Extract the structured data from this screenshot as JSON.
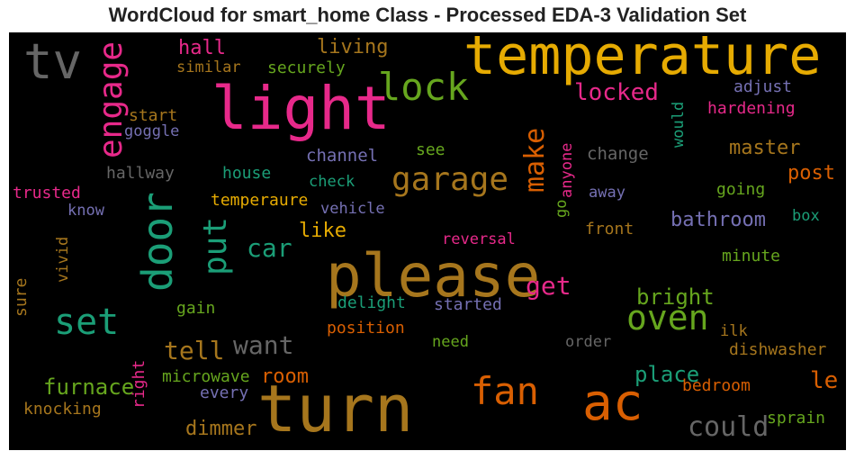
{
  "title": "WordCloud for smart_home Class - Processed EDA-3 Validation Set",
  "colors": {
    "pink": "#e7298a",
    "orange": "#d95f02",
    "gold": "#e6ab02",
    "brown": "#a6761d",
    "green": "#66a61e",
    "teal": "#1b9e77",
    "purple": "#7570b3",
    "gray": "#666666"
  },
  "words": [
    "temperature",
    "light",
    "tv",
    "lock",
    "hall",
    "living",
    "securely",
    "similar",
    "locked",
    "adjust",
    "hardening",
    "start",
    "goggle",
    "engage",
    "please",
    "door",
    "put",
    "garage",
    "make",
    "anyone",
    "change",
    "would",
    "master",
    "hallway",
    "house",
    "channel",
    "see",
    "check",
    "post",
    "trusted",
    "temperaure",
    "vehicle",
    "away",
    "going",
    "go",
    "know",
    "box",
    "bathroom",
    "car",
    "like",
    "front",
    "vivid",
    "reversal",
    "minute",
    "sure",
    "get",
    "gain",
    "delight",
    "started",
    "bright",
    "set",
    "oven",
    "position",
    "want",
    "tell",
    "need",
    "order",
    "ilk",
    "dishwasher",
    "microwave",
    "room",
    "place",
    "furnace",
    "every",
    "right",
    "le",
    "bedroom",
    "fan",
    "ac",
    "knocking",
    "turn",
    "sprain",
    "dimmer",
    "could"
  ]
}
